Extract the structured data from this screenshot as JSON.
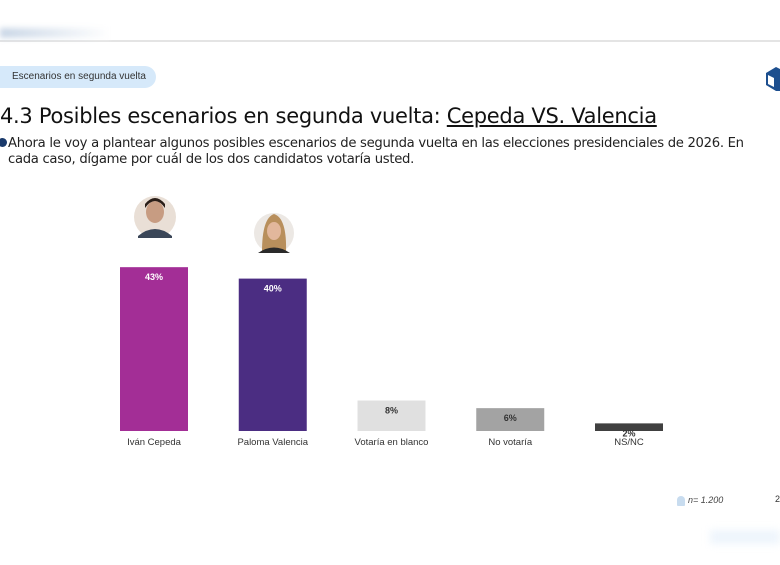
{
  "header": {
    "section_pill": "Escenarios en segunda vuelta",
    "title_prefix": "4.3 Posibles escenarios en segunda vuelta: ",
    "title_link": "Cepeda VS. Valencia",
    "question": "Ahora le voy a plantear algunos posibles escenarios de segunda vuelta en las elecciones presidenciales de 2026. En cada caso, dígame por cuál de los dos candidatos votaría usted."
  },
  "footer": {
    "sample": "n= 1.200",
    "page": "2"
  },
  "chart_data": {
    "type": "bar",
    "categories": [
      "Iván Cepeda",
      "Paloma Valencia",
      "Votaría en blanco",
      "No votaría",
      "NS/NC"
    ],
    "values": [
      43,
      40,
      8,
      6,
      2
    ],
    "data_labels": [
      "43%",
      "40%",
      "8%",
      "6%",
      "2%"
    ],
    "colors": [
      "#a32e96",
      "#4b2d82",
      "#e0e0e0",
      "#a3a3a3",
      "#404040"
    ],
    "label_colors": [
      "#ffffff",
      "#ffffff",
      "#333333",
      "#333333",
      "#333333"
    ],
    "ylim": [
      0,
      50
    ],
    "grid": false
  }
}
